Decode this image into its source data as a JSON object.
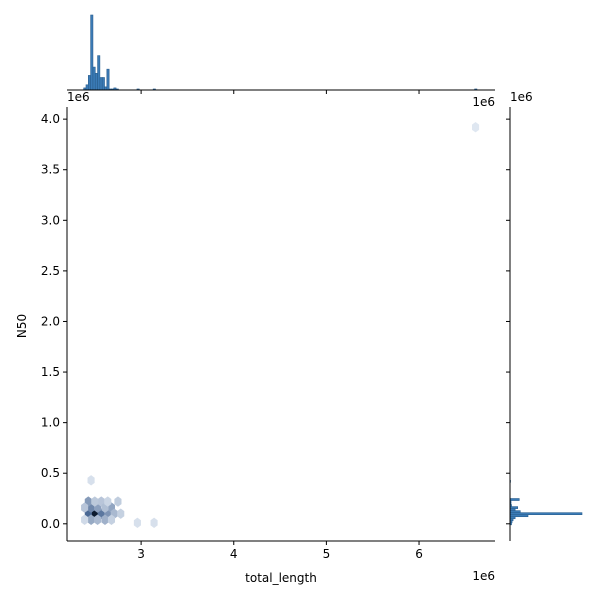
{
  "chart_data": {
    "type": "hexbin-jointplot",
    "xlabel": "total_length",
    "ylabel": "N50",
    "x_offset_label": "1e6",
    "y_offset_label": "1e6",
    "marg_x_offset_label": "1e6",
    "marg_y_offset_label": "1e6",
    "xlim": [
      2.2,
      6.82
    ],
    "ylim": [
      -0.17,
      4.12
    ],
    "x_ticks": [
      {
        "value": 3,
        "label": "3"
      },
      {
        "value": 4,
        "label": "4"
      },
      {
        "value": 5,
        "label": "5"
      },
      {
        "value": 6,
        "label": "6"
      }
    ],
    "y_ticks": [
      {
        "value": 0.0,
        "label": "0.0"
      },
      {
        "value": 0.5,
        "label": "0.5"
      },
      {
        "value": 1.0,
        "label": "1.0"
      },
      {
        "value": 1.5,
        "label": "1.5"
      },
      {
        "value": 2.0,
        "label": "2.0"
      },
      {
        "value": 2.5,
        "label": "2.5"
      },
      {
        "value": 3.0,
        "label": "3.0"
      },
      {
        "value": 3.5,
        "label": "3.5"
      },
      {
        "value": 4.0,
        "label": "4.0"
      }
    ],
    "hexbins": [
      {
        "x": 2.5,
        "y": 0.1,
        "count": 100
      },
      {
        "x": 2.43,
        "y": 0.1,
        "count": 55
      },
      {
        "x": 2.57,
        "y": 0.1,
        "count": 45
      },
      {
        "x": 2.46,
        "y": 0.16,
        "count": 35
      },
      {
        "x": 2.53,
        "y": 0.16,
        "count": 22
      },
      {
        "x": 2.64,
        "y": 0.1,
        "count": 28
      },
      {
        "x": 2.61,
        "y": 0.04,
        "count": 15
      },
      {
        "x": 2.46,
        "y": 0.04,
        "count": 18
      },
      {
        "x": 2.53,
        "y": 0.04,
        "count": 12
      },
      {
        "x": 2.43,
        "y": 0.22,
        "count": 25
      },
      {
        "x": 2.39,
        "y": 0.16,
        "count": 8
      },
      {
        "x": 2.68,
        "y": 0.16,
        "count": 20
      },
      {
        "x": 2.71,
        "y": 0.1,
        "count": 12
      },
      {
        "x": 2.57,
        "y": 0.22,
        "count": 8
      },
      {
        "x": 2.61,
        "y": 0.16,
        "count": 10
      },
      {
        "x": 2.5,
        "y": 0.22,
        "count": 7
      },
      {
        "x": 2.78,
        "y": 0.1,
        "count": 5
      },
      {
        "x": 2.75,
        "y": 0.22,
        "count": 6
      },
      {
        "x": 2.64,
        "y": 0.22,
        "count": 4
      },
      {
        "x": 2.68,
        "y": 0.04,
        "count": 5
      },
      {
        "x": 2.39,
        "y": 0.04,
        "count": 3
      },
      {
        "x": 2.46,
        "y": 0.43,
        "count": 2
      },
      {
        "x": 2.96,
        "y": 0.01,
        "count": 2
      },
      {
        "x": 3.14,
        "y": 0.01,
        "count": 2
      },
      {
        "x": 6.61,
        "y": 3.92,
        "count": 1
      }
    ],
    "marginal_x_hist": [
      {
        "x0": 2.38,
        "x1": 2.405,
        "count": 2
      },
      {
        "x0": 2.405,
        "x1": 2.43,
        "count": 5
      },
      {
        "x0": 2.43,
        "x1": 2.455,
        "count": 14
      },
      {
        "x0": 2.455,
        "x1": 2.48,
        "count": 72
      },
      {
        "x0": 2.48,
        "x1": 2.505,
        "count": 22
      },
      {
        "x0": 2.505,
        "x1": 2.53,
        "count": 16
      },
      {
        "x0": 2.53,
        "x1": 2.555,
        "count": 33
      },
      {
        "x0": 2.555,
        "x1": 2.58,
        "count": 12
      },
      {
        "x0": 2.58,
        "x1": 2.605,
        "count": 12
      },
      {
        "x0": 2.605,
        "x1": 2.63,
        "count": 3
      },
      {
        "x0": 2.63,
        "x1": 2.655,
        "count": 20
      },
      {
        "x0": 2.655,
        "x1": 2.68,
        "count": 1
      },
      {
        "x0": 2.68,
        "x1": 2.705,
        "count": 1
      },
      {
        "x0": 2.705,
        "x1": 2.73,
        "count": 2
      },
      {
        "x0": 2.73,
        "x1": 2.755,
        "count": 1
      },
      {
        "x0": 2.955,
        "x1": 2.98,
        "count": 1
      },
      {
        "x0": 3.13,
        "x1": 3.155,
        "count": 1
      },
      {
        "x0": 6.6,
        "x1": 6.625,
        "count": 1
      }
    ],
    "marginal_y_hist": [
      {
        "y0": -0.01,
        "y1": 0.01,
        "count": 3
      },
      {
        "y0": 0.01,
        "y1": 0.03,
        "count": 4
      },
      {
        "y0": 0.03,
        "y1": 0.05,
        "count": 6
      },
      {
        "y0": 0.05,
        "y1": 0.07,
        "count": 10
      },
      {
        "y0": 0.07,
        "y1": 0.09,
        "count": 35
      },
      {
        "y0": 0.09,
        "y1": 0.11,
        "count": 140
      },
      {
        "y0": 0.11,
        "y1": 0.13,
        "count": 20
      },
      {
        "y0": 0.13,
        "y1": 0.15,
        "count": 10
      },
      {
        "y0": 0.15,
        "y1": 0.17,
        "count": 15
      },
      {
        "y0": 0.17,
        "y1": 0.19,
        "count": 3
      },
      {
        "y0": 0.19,
        "y1": 0.21,
        "count": 2
      },
      {
        "y0": 0.21,
        "y1": 0.23,
        "count": 2
      },
      {
        "y0": 0.23,
        "y1": 0.25,
        "count": 18
      },
      {
        "y0": 0.41,
        "y1": 0.43,
        "count": 1
      }
    ],
    "colors": {
      "hist_fill": "#3b7bb6",
      "hist_edge": "#2a5f8f",
      "hex_low": "#f2f7fd",
      "hex_high": "#08306b",
      "hex_max": "#0b1a2e",
      "axis": "#000000"
    }
  }
}
